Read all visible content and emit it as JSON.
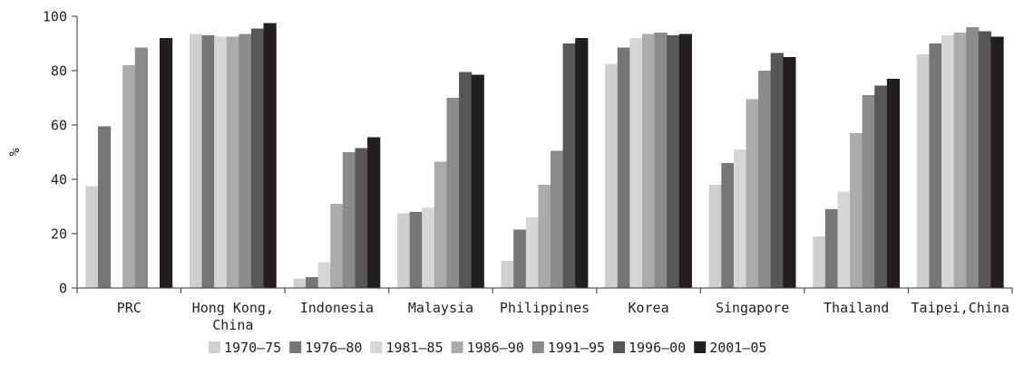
{
  "chart_data": {
    "type": "bar",
    "ylabel": "%",
    "ylim": [
      0,
      100
    ],
    "yticks": [
      0,
      20,
      40,
      60,
      80,
      100
    ],
    "grid": false,
    "legend_position": "bottom",
    "categories": [
      [
        "PRC"
      ],
      [
        "Hong Kong,",
        "China"
      ],
      [
        "Indonesia"
      ],
      [
        "Malaysia"
      ],
      [
        "Philippines"
      ],
      [
        "Korea"
      ],
      [
        "Singapore"
      ],
      [
        "Thailand"
      ],
      [
        "Taipei,China"
      ]
    ],
    "series": [
      {
        "name": "1970–75",
        "color": "#cfcfcf",
        "values": [
          37.5,
          93.5,
          3.5,
          27.5,
          10,
          82.5,
          38,
          19,
          86
        ]
      },
      {
        "name": "1976–80",
        "color": "#767676",
        "values": [
          59.5,
          93,
          4,
          28,
          21.5,
          88.5,
          46,
          29,
          90
        ]
      },
      {
        "name": "1981–85",
        "color": "#d6d6d6",
        "values": [
          0,
          92.5,
          9.5,
          29.5,
          26,
          92,
          51,
          35.5,
          93
        ]
      },
      {
        "name": "1986–90",
        "color": "#ababab",
        "values": [
          82,
          92.5,
          31,
          46.5,
          38,
          93.5,
          69.5,
          57,
          94
        ]
      },
      {
        "name": "1991–95",
        "color": "#8b8b8b",
        "values": [
          88.5,
          93.5,
          50,
          70,
          50.5,
          94,
          80,
          71,
          96
        ]
      },
      {
        "name": "1996–00",
        "color": "#575757",
        "values": [
          0,
          95.5,
          51.5,
          79.5,
          90,
          93,
          86.5,
          74.5,
          94.5
        ]
      },
      {
        "name": "2001–05",
        "color": "#231f20",
        "values": [
          92,
          97.5,
          55.5,
          78.5,
          92,
          93.5,
          85,
          77,
          92.5
        ]
      }
    ]
  }
}
